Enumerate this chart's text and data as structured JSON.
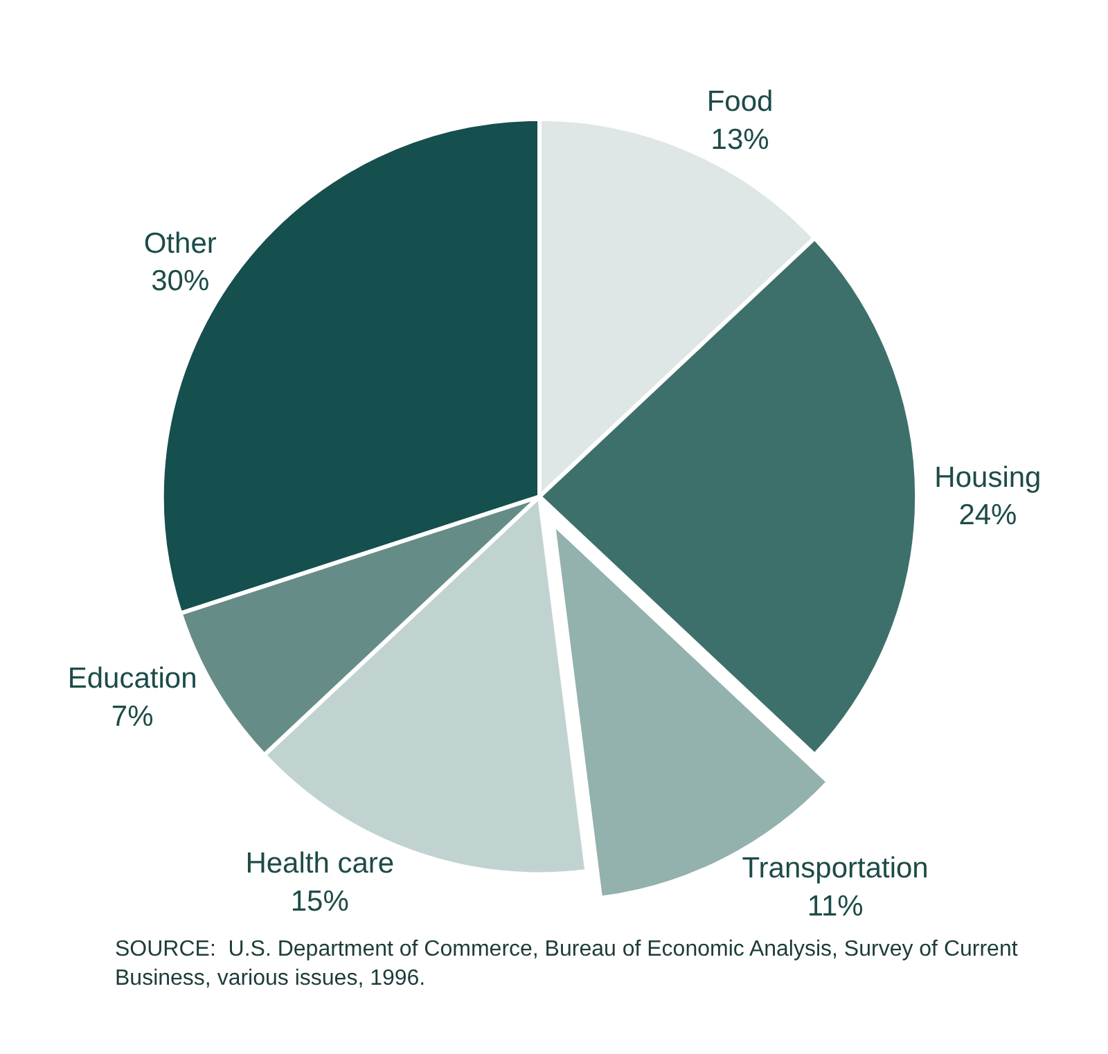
{
  "chart_data": {
    "type": "pie",
    "categories": [
      "Food",
      "Housing",
      "Transportation",
      "Health care",
      "Education",
      "Other"
    ],
    "values": [
      13,
      24,
      11,
      15,
      7,
      30
    ],
    "value_labels": [
      "13%",
      "24%",
      "11%",
      "15%",
      "7%",
      "30%"
    ],
    "colors": [
      "#dfe7e6",
      "#3e706b",
      "#93b1ad",
      "#c1d3d1",
      "#668c88",
      "#154f4e"
    ],
    "annotations": [
      "SOURCE:  U.S. Department of Commerce, Bureau of Economic Analysis, Survey of Current Business, various issues, 1996."
    ],
    "legend": false
  }
}
